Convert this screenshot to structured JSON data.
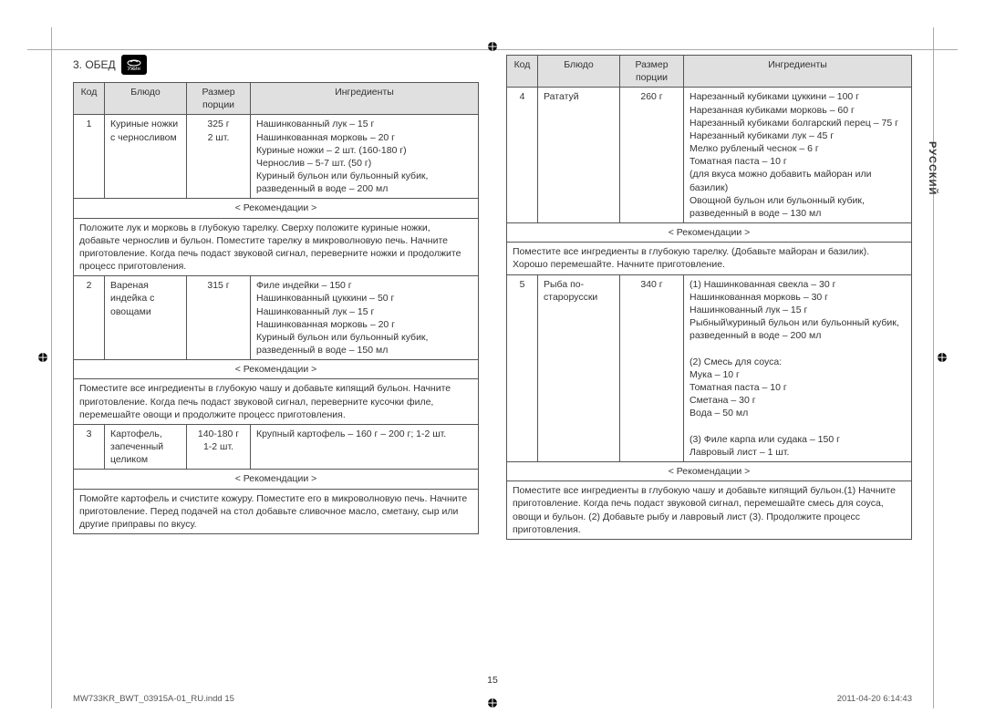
{
  "section": {
    "title": "3. ОБЕД",
    "icon_label": "Ужин"
  },
  "headers": {
    "code": "Код",
    "dish": "Блюдо",
    "portion": "Размер порции",
    "ingredients": "Ингредиенты",
    "recommendations": "< Рекомендации >"
  },
  "left_rows": [
    {
      "code": "1",
      "dish": "Куриные ножки с черносливом",
      "portion": "325 г\n2 шт.",
      "ingredients": "Нашинкованный лук – 15 г\nНашинкованная морковь – 20 г\nКуриные ножки – 2 шт. (160-180 г)\nЧернослив – 5-7 шт. (50 г)\nКуриный бульон или бульонный кубик, разведенный в воде – 200 мл",
      "rec": "Положите лук и морковь в глубокую тарелку. Сверху положите куриные ножки, добавьте чернослив и бульон. Поместите тарелку в микроволновую печь. Начните приготовление. Когда печь подаст звуковой сигнал, переверните ножки и продолжите процесс приготовления."
    },
    {
      "code": "2",
      "dish": "Вареная индейка с овощами",
      "portion": "315 г",
      "ingredients": "Филе индейки – 150 г\nНашинкованный цуккини – 50 г\nНашинкованный лук – 15 г\nНашинкованная морковь – 20 г\nКуриный бульон или бульонный кубик, разведенный в воде – 150 мл",
      "rec": "Поместите все ингредиенты в глубокую чашу и добавьте кипящий бульон. Начните приготовление. Когда печь подаст звуковой сигнал, переверните кусочки филе, перемешайте овощи и продолжите процесс приготовления."
    },
    {
      "code": "3",
      "dish": "Картофель, запеченный целиком",
      "portion": "140-180 г\n1-2 шт.",
      "ingredients": "Крупный картофель – 160 г – 200 г; 1-2 шт.",
      "rec": "Помойте картофель и счистите кожуру. Поместите его в микроволновую печь. Начните приготовление. Перед подачей на стол добавьте сливочное масло, сметану, сыр или другие приправы по вкусу."
    }
  ],
  "right_rows": [
    {
      "code": "4",
      "dish": "Рататуй",
      "portion": "260 г",
      "ingredients": "Нарезанный кубиками цуккини – 100 г\nНарезанная кубиками морковь – 60 г\nНарезанный кубиками болгарский перец – 75 г\nНарезанный кубиками лук – 45 г\nМелко рубленый чеснок – 6 г\nТоматная паста – 10 г\n(для вкуса можно добавить майоран или базилик)\nОвощной бульон или бульонный кубик, разведенный в воде – 130 мл",
      "rec": "Поместите все ингредиенты в глубокую тарелку. (Добавьте майоран и базилик). Хорошо перемешайте. Начните приготовление."
    },
    {
      "code": "5",
      "dish": "Рыба по-старорусски",
      "portion": "340 г",
      "ingredients": "(1) Нашинкованная свекла – 30 г\nНашинкованная морковь – 30 г\nНашинкованный лук – 15 г\nРыбный\\куриный бульон или бульонный кубик, разведенный в воде – 200 мл\n\n(2) Смесь для соуса:\nМука – 10 г\nТоматная паста – 10 г\nСметана – 30 г\nВода – 50 мл\n\n(3) Филе карпа или судака – 150 г\nЛавровый лист – 1 шт.",
      "rec": "Поместите все ингредиенты в глубокую чашу и добавьте кипящий бульон.(1) Начните приготовление. Когда печь подаст звуковой сигнал, перемешайте смесь для соуса, овощи и бульон. (2) Добавьте рыбу и лавровый лист (3). Продолжите процесс приготовления."
    }
  ],
  "side_tab": "РУССКИЙ",
  "page_number": "15",
  "footer": {
    "left": "MW733KR_BWT_03915A-01_RU.indd   15",
    "right": "2011-04-20   6:14:43"
  }
}
